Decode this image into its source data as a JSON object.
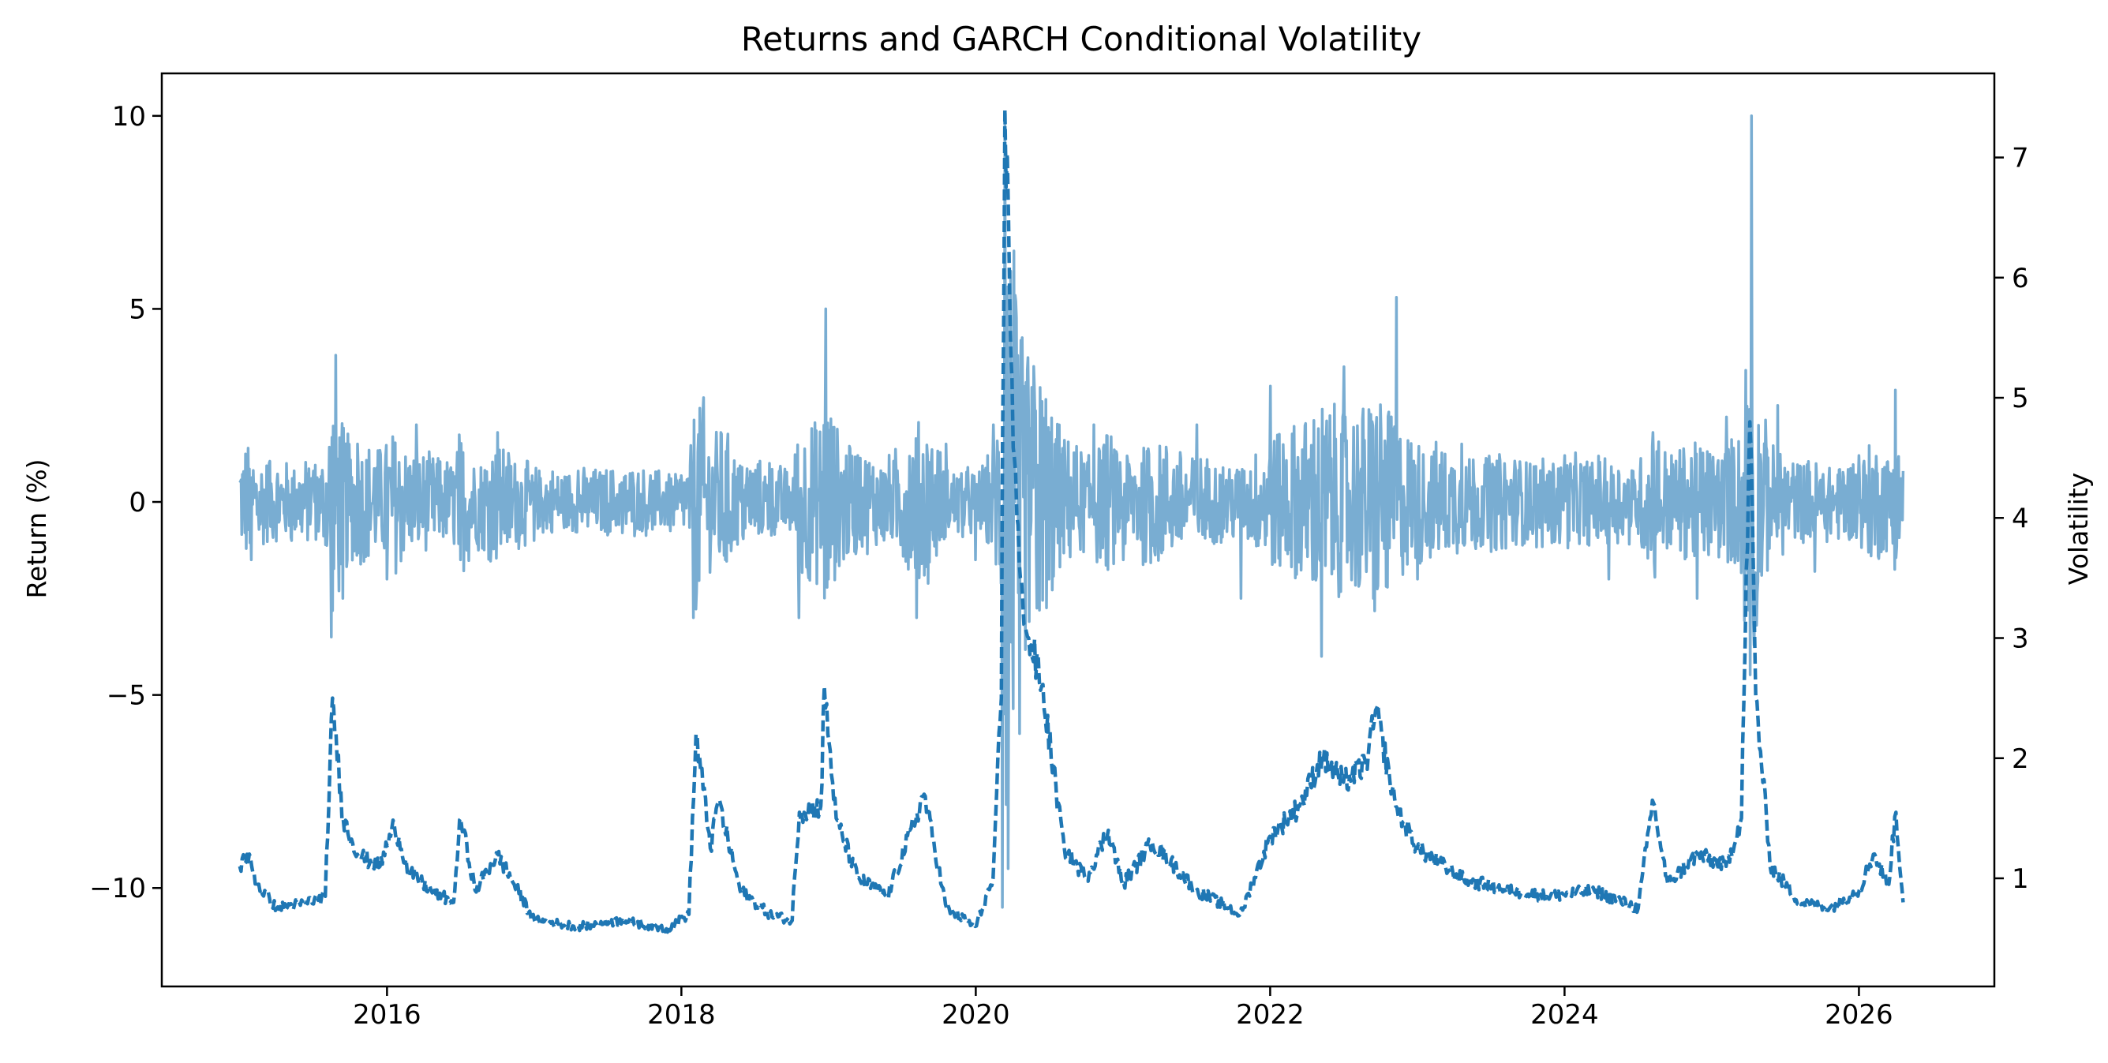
{
  "chart_data": {
    "type": "line",
    "title": "Returns and GARCH Conditional Volatility",
    "xlabel": "",
    "ylabel": "Return (%)",
    "ylabel_right": "Volatility",
    "xlim": [
      2014.47,
      2026.92
    ],
    "ylim": [
      -12.55,
      11.1
    ],
    "ylim_right": [
      0.1,
      7.7
    ],
    "x_ticks": [
      2016,
      2018,
      2020,
      2022,
      2024,
      2026
    ],
    "y_ticks": [
      -10,
      -5,
      0,
      5,
      10
    ],
    "y_ticks_right": [
      1,
      2,
      3,
      4,
      5,
      6,
      7
    ],
    "grid": false,
    "series": [
      {
        "axis": "left",
        "style": "solid",
        "color": "#1f77b4",
        "alpha": 0.6,
        "x": [
          2015.0,
          2015.08,
          2015.2,
          2015.35,
          2015.5,
          2015.62,
          2015.65,
          2015.7,
          2015.8,
          2016.0,
          2016.2,
          2016.5,
          2016.75,
          2017.0,
          2017.3,
          2017.6,
          2017.9,
          2018.08,
          2018.15,
          2018.3,
          2018.6,
          2018.8,
          2018.98,
          2019.0,
          2019.2,
          2019.6,
          2019.8,
          2020.0,
          2020.12,
          2020.18,
          2020.2,
          2020.22,
          2020.26,
          2020.3,
          2020.4,
          2020.5,
          2020.8,
          2021.0,
          2021.5,
          2021.8,
          2022.0,
          2022.35,
          2022.5,
          2022.7,
          2022.86,
          2023.0,
          2023.3,
          2023.6,
          2024.0,
          2024.3,
          2024.6,
          2024.9,
          2025.1,
          2025.25,
          2025.27,
          2025.3,
          2025.45,
          2025.7,
          2026.0,
          2026.25,
          2026.3
        ],
        "values": [
          0.5,
          -1.5,
          1.0,
          -1.0,
          0.8,
          -3.5,
          3.8,
          -2.5,
          1.5,
          -2.0,
          2.0,
          -1.5,
          1.8,
          -1.0,
          0.8,
          -0.8,
          0.5,
          -3.0,
          2.7,
          -1.5,
          1.0,
          -3.0,
          5.0,
          -2.0,
          1.2,
          -3.0,
          1.5,
          -1.5,
          2.0,
          -10.5,
          10.0,
          -9.5,
          6.5,
          -6.0,
          3.0,
          -2.0,
          2.0,
          -1.5,
          2.0,
          -2.5,
          3.0,
          -4.0,
          3.5,
          -2.5,
          5.3,
          -2.0,
          1.5,
          -1.2,
          1.2,
          -2.0,
          1.8,
          -2.5,
          2.2,
          -2.8,
          10.0,
          -3.0,
          2.5,
          -1.8,
          1.2,
          2.9,
          0.8
        ]
      },
      {
        "axis": "right",
        "style": "dashed",
        "color": "#1f77b4",
        "alpha": 1.0,
        "x": [
          2015.0,
          2015.05,
          2015.12,
          2015.25,
          2015.45,
          2015.58,
          2015.63,
          2015.7,
          2015.8,
          2015.95,
          2016.05,
          2016.15,
          2016.3,
          2016.45,
          2016.5,
          2016.6,
          2016.75,
          2017.0,
          2017.3,
          2017.6,
          2017.9,
          2018.05,
          2018.1,
          2018.2,
          2018.25,
          2018.4,
          2018.6,
          2018.75,
          2018.8,
          2018.95,
          2018.97,
          2019.05,
          2019.2,
          2019.4,
          2019.65,
          2019.8,
          2020.0,
          2020.12,
          2020.17,
          2020.2,
          2020.26,
          2020.3,
          2020.36,
          2020.45,
          2020.6,
          2020.75,
          2020.9,
          2021.0,
          2021.2,
          2021.5,
          2021.8,
          2022.0,
          2022.2,
          2022.35,
          2022.5,
          2022.65,
          2022.72,
          2022.85,
          2023.0,
          2023.3,
          2023.6,
          2023.9,
          2024.2,
          2024.5,
          2024.6,
          2024.7,
          2024.9,
          2025.1,
          2025.2,
          2025.26,
          2025.3,
          2025.4,
          2025.6,
          2025.8,
          2026.0,
          2026.1,
          2026.2,
          2026.25,
          2026.3
        ],
        "values": [
          1.1,
          1.2,
          0.95,
          0.75,
          0.8,
          0.85,
          2.5,
          1.5,
          1.2,
          1.1,
          1.45,
          1.05,
          0.9,
          0.8,
          1.5,
          0.9,
          1.2,
          0.65,
          0.6,
          0.65,
          0.58,
          0.7,
          2.2,
          1.25,
          1.65,
          0.9,
          0.7,
          0.65,
          1.55,
          1.6,
          2.6,
          1.5,
          1.0,
          0.85,
          1.7,
          0.75,
          0.6,
          1.0,
          2.5,
          7.4,
          4.5,
          3.5,
          3.0,
          2.6,
          1.25,
          1.0,
          1.4,
          0.95,
          1.3,
          0.9,
          0.7,
          1.35,
          1.6,
          2.0,
          1.8,
          1.95,
          2.4,
          1.6,
          1.25,
          1.0,
          0.9,
          0.85,
          0.9,
          0.75,
          1.65,
          0.95,
          1.2,
          1.1,
          1.5,
          4.8,
          2.5,
          1.1,
          0.8,
          0.75,
          0.9,
          1.2,
          0.95,
          1.55,
          0.8
        ]
      }
    ]
  }
}
